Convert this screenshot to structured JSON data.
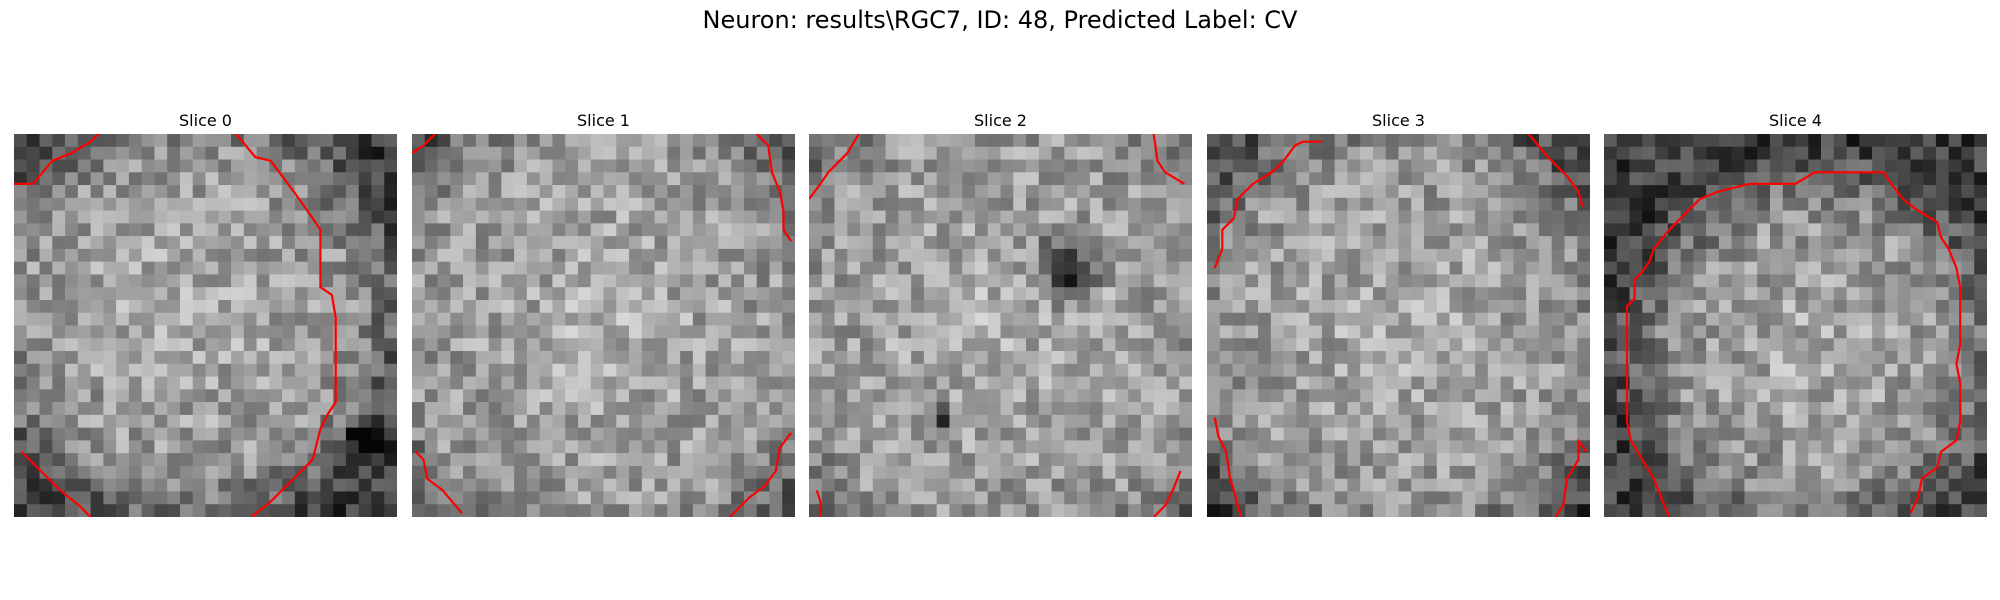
{
  "figure": {
    "title": "Neuron: results\\RGC7, ID: 48, Predicted Label: CV"
  },
  "contour_color": "#ff0000",
  "grid_size": 30,
  "slices": [
    {
      "label": "Slice 0",
      "bright_center": [
        0.45,
        0.47
      ],
      "bright_radius": 0.42,
      "dark_blobs": [
        [
          0.92,
          0.8,
          0.07
        ]
      ],
      "contours": [
        [
          [
            0.0,
            0.13
          ],
          [
            0.05,
            0.13
          ],
          [
            0.1,
            0.07
          ],
          [
            0.15,
            0.05
          ],
          [
            0.2,
            0.02
          ],
          [
            0.22,
            0.0
          ]
        ],
        [
          [
            0.58,
            0.0
          ],
          [
            0.63,
            0.06
          ],
          [
            0.67,
            0.07
          ],
          [
            0.73,
            0.15
          ],
          [
            0.78,
            0.22
          ],
          [
            0.8,
            0.25
          ],
          [
            0.8,
            0.4
          ],
          [
            0.83,
            0.42
          ],
          [
            0.84,
            0.48
          ],
          [
            0.84,
            0.55
          ],
          [
            0.84,
            0.62
          ],
          [
            0.84,
            0.7
          ],
          [
            0.82,
            0.73
          ],
          [
            0.8,
            0.77
          ],
          [
            0.78,
            0.85
          ],
          [
            0.72,
            0.91
          ],
          [
            0.67,
            0.96
          ],
          [
            0.62,
            1.0
          ]
        ],
        [
          [
            0.02,
            0.83
          ],
          [
            0.07,
            0.88
          ],
          [
            0.12,
            0.93
          ],
          [
            0.17,
            0.97
          ],
          [
            0.2,
            1.0
          ]
        ]
      ]
    },
    {
      "label": "Slice 1",
      "bright_center": [
        0.5,
        0.5
      ],
      "bright_radius": 0.52,
      "dark_blobs": [],
      "contours": [
        [
          [
            0.0,
            0.05
          ],
          [
            0.03,
            0.03
          ],
          [
            0.06,
            0.0
          ]
        ],
        [
          [
            0.9,
            0.0
          ],
          [
            0.93,
            0.03
          ],
          [
            0.94,
            0.1
          ],
          [
            0.96,
            0.15
          ],
          [
            0.97,
            0.2
          ],
          [
            0.97,
            0.25
          ],
          [
            0.99,
            0.28
          ]
        ],
        [
          [
            0.01,
            0.83
          ],
          [
            0.03,
            0.85
          ],
          [
            0.04,
            0.9
          ],
          [
            0.08,
            0.93
          ],
          [
            0.13,
            0.99
          ]
        ],
        [
          [
            0.83,
            1.0
          ],
          [
            0.88,
            0.95
          ],
          [
            0.92,
            0.92
          ],
          [
            0.95,
            0.88
          ],
          [
            0.96,
            0.82
          ],
          [
            0.99,
            0.78
          ]
        ]
      ]
    },
    {
      "label": "Slice 2",
      "bright_center": [
        0.5,
        0.5
      ],
      "bright_radius": 0.55,
      "dark_blobs": [
        [
          0.68,
          0.35,
          0.12
        ],
        [
          0.35,
          0.75,
          0.05
        ]
      ],
      "contours": [
        [
          [
            0.0,
            0.17
          ],
          [
            0.03,
            0.13
          ],
          [
            0.05,
            0.1
          ],
          [
            0.1,
            0.05
          ],
          [
            0.13,
            0.0
          ]
        ],
        [
          [
            0.9,
            0.0
          ],
          [
            0.91,
            0.07
          ],
          [
            0.93,
            0.1
          ],
          [
            0.98,
            0.13
          ]
        ],
        [
          [
            0.02,
            0.93
          ],
          [
            0.03,
            0.96
          ],
          [
            0.03,
            1.0
          ]
        ],
        [
          [
            0.9,
            1.0
          ],
          [
            0.93,
            0.97
          ],
          [
            0.95,
            0.93
          ],
          [
            0.97,
            0.88
          ]
        ]
      ]
    },
    {
      "label": "Slice 3",
      "bright_center": [
        0.5,
        0.52
      ],
      "bright_radius": 0.47,
      "dark_blobs": [],
      "contours": [
        [
          [
            0.02,
            0.35
          ],
          [
            0.04,
            0.3
          ],
          [
            0.04,
            0.25
          ],
          [
            0.07,
            0.22
          ],
          [
            0.08,
            0.17
          ],
          [
            0.12,
            0.13
          ],
          [
            0.17,
            0.1
          ],
          [
            0.2,
            0.07
          ],
          [
            0.23,
            0.03
          ],
          [
            0.25,
            0.02
          ],
          [
            0.3,
            0.02
          ]
        ],
        [
          [
            0.84,
            0.0
          ],
          [
            0.89,
            0.06
          ],
          [
            0.94,
            0.11
          ],
          [
            0.97,
            0.15
          ],
          [
            0.98,
            0.19
          ]
        ],
        [
          [
            0.02,
            0.74
          ],
          [
            0.03,
            0.79
          ],
          [
            0.05,
            0.83
          ],
          [
            0.06,
            0.9
          ],
          [
            0.07,
            0.93
          ],
          [
            0.08,
            0.97
          ],
          [
            0.09,
            1.0
          ]
        ],
        [
          [
            0.91,
            1.0
          ],
          [
            0.93,
            0.97
          ],
          [
            0.94,
            0.9
          ],
          [
            0.97,
            0.85
          ],
          [
            0.97,
            0.8
          ],
          [
            0.99,
            0.83
          ]
        ]
      ]
    },
    {
      "label": "Slice 4",
      "bright_center": [
        0.55,
        0.57
      ],
      "bright_radius": 0.35,
      "dark_blobs": [],
      "contours": [
        [
          [
            0.17,
            1.0
          ],
          [
            0.15,
            0.95
          ],
          [
            0.13,
            0.9
          ],
          [
            0.1,
            0.85
          ],
          [
            0.07,
            0.8
          ],
          [
            0.06,
            0.75
          ],
          [
            0.06,
            0.68
          ],
          [
            0.06,
            0.5
          ],
          [
            0.06,
            0.45
          ],
          [
            0.08,
            0.43
          ],
          [
            0.08,
            0.38
          ],
          [
            0.1,
            0.36
          ],
          [
            0.12,
            0.33
          ],
          [
            0.13,
            0.3
          ],
          [
            0.17,
            0.25
          ],
          [
            0.2,
            0.22
          ],
          [
            0.25,
            0.17
          ],
          [
            0.3,
            0.15
          ],
          [
            0.38,
            0.13
          ],
          [
            0.5,
            0.13
          ],
          [
            0.55,
            0.1
          ],
          [
            0.67,
            0.1
          ],
          [
            0.73,
            0.1
          ],
          [
            0.75,
            0.13
          ],
          [
            0.78,
            0.17
          ],
          [
            0.82,
            0.2
          ],
          [
            0.87,
            0.23
          ],
          [
            0.88,
            0.27
          ],
          [
            0.9,
            0.3
          ],
          [
            0.92,
            0.35
          ],
          [
            0.93,
            0.4
          ],
          [
            0.93,
            0.45
          ],
          [
            0.93,
            0.55
          ],
          [
            0.92,
            0.6
          ],
          [
            0.93,
            0.65
          ],
          [
            0.93,
            0.75
          ],
          [
            0.92,
            0.8
          ],
          [
            0.88,
            0.83
          ],
          [
            0.87,
            0.87
          ],
          [
            0.83,
            0.9
          ],
          [
            0.82,
            0.95
          ],
          [
            0.8,
            0.99
          ]
        ]
      ]
    }
  ]
}
